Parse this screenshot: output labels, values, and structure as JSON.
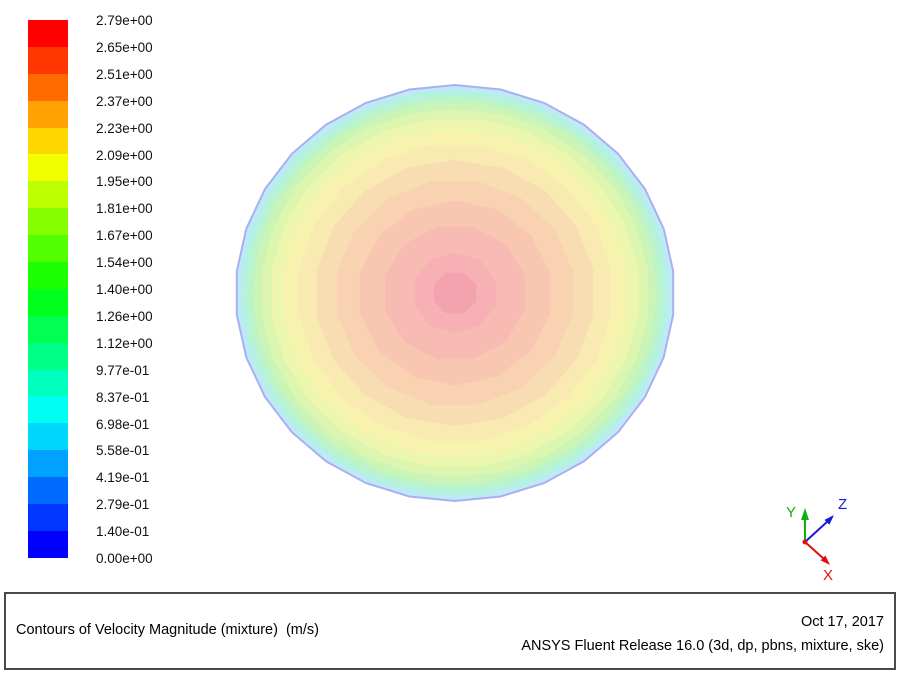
{
  "colorbar": {
    "labels": [
      "2.79e+00",
      "2.65e+00",
      "2.51e+00",
      "2.37e+00",
      "2.23e+00",
      "2.09e+00",
      "1.95e+00",
      "1.81e+00",
      "1.67e+00",
      "1.54e+00",
      "1.40e+00",
      "1.26e+00",
      "1.12e+00",
      "9.77e-01",
      "8.37e-01",
      "6.98e-01",
      "5.58e-01",
      "4.19e-01",
      "2.79e-01",
      "1.40e-01",
      "0.00e+00"
    ],
    "colors": [
      "#ff0000",
      "#ff3600",
      "#ff6b00",
      "#ffa100",
      "#ffd700",
      "#f2ff00",
      "#bcff00",
      "#86ff00",
      "#51ff00",
      "#1bff00",
      "#00ff1b",
      "#00ff51",
      "#00ff86",
      "#00ffbc",
      "#00fff2",
      "#00d7ff",
      "#00a1ff",
      "#006bff",
      "#0036ff",
      "#0000ff"
    ]
  },
  "contour": {
    "outline_color": "#a9b0f2",
    "rings": [
      {
        "r": 1.0,
        "sides": 30,
        "color": "#bfe9f6"
      },
      {
        "r": 0.978,
        "sides": 28,
        "color": "#b4f1e2"
      },
      {
        "r": 0.952,
        "sides": 28,
        "color": "#bcf4c9"
      },
      {
        "r": 0.922,
        "sides": 26,
        "color": "#caf5b6"
      },
      {
        "r": 0.886,
        "sides": 26,
        "color": "#dcf6b0"
      },
      {
        "r": 0.842,
        "sides": 24,
        "color": "#ecf6ae"
      },
      {
        "r": 0.788,
        "sides": 22,
        "color": "#f7f3af"
      },
      {
        "r": 0.72,
        "sides": 20,
        "color": "#f8eab1"
      },
      {
        "r": 0.64,
        "sides": 18,
        "color": "#f8ddb2"
      },
      {
        "r": 0.548,
        "sides": 16,
        "color": "#f9d2b2"
      },
      {
        "r": 0.445,
        "sides": 14,
        "color": "#f9c6b2"
      },
      {
        "r": 0.33,
        "sides": 12,
        "color": "#f8bbb3"
      },
      {
        "r": 0.195,
        "sides": 10,
        "color": "#f7b0b4"
      },
      {
        "r": 0.105,
        "sides": 8,
        "color": "#f3a3ad"
      }
    ]
  },
  "triad": {
    "x_label": "X",
    "y_label": "Y",
    "z_label": "Z",
    "x_color": "#e01010",
    "y_color": "#10b010",
    "z_color": "#1818e0"
  },
  "footer": {
    "title": "Contours of Velocity Magnitude (mixture)  (m/s)",
    "date": "Oct 17, 2017",
    "app": "ANSYS Fluent Release 16.0 (3d, dp, pbns, mixture, ske)"
  },
  "chart_data": {
    "type": "heatmap",
    "title": "Contours of Velocity Magnitude (mixture) (m/s)",
    "units": "m/s",
    "legend_levels": [
      2.79,
      2.65,
      2.51,
      2.37,
      2.23,
      2.09,
      1.95,
      1.81,
      1.67,
      1.54,
      1.4,
      1.26,
      1.12,
      0.977,
      0.837,
      0.698,
      0.558,
      0.419,
      0.279,
      0.14,
      0.0
    ],
    "colormap": "rainbow, blue = 0.00 m/s (wall) to red = 2.79 m/s (center), rendered pale/lightened",
    "geometry": "circular pipe cross-section with concentric axisymmetric contour bands, maximum velocity at center",
    "radial_profile": [
      {
        "r_fraction": 0.0,
        "velocity_mps": 2.79
      },
      {
        "r_fraction": 0.2,
        "velocity_mps": 2.6
      },
      {
        "r_fraction": 0.33,
        "velocity_mps": 2.4
      },
      {
        "r_fraction": 0.45,
        "velocity_mps": 2.2
      },
      {
        "r_fraction": 0.55,
        "velocity_mps": 2.0
      },
      {
        "r_fraction": 0.64,
        "velocity_mps": 1.85
      },
      {
        "r_fraction": 0.72,
        "velocity_mps": 1.7
      },
      {
        "r_fraction": 0.79,
        "velocity_mps": 1.55
      },
      {
        "r_fraction": 0.84,
        "velocity_mps": 1.4
      },
      {
        "r_fraction": 0.89,
        "velocity_mps": 1.2
      },
      {
        "r_fraction": 0.92,
        "velocity_mps": 1.0
      },
      {
        "r_fraction": 0.95,
        "velocity_mps": 0.8
      },
      {
        "r_fraction": 0.98,
        "velocity_mps": 0.5
      },
      {
        "r_fraction": 1.0,
        "velocity_mps": 0.0
      }
    ]
  }
}
